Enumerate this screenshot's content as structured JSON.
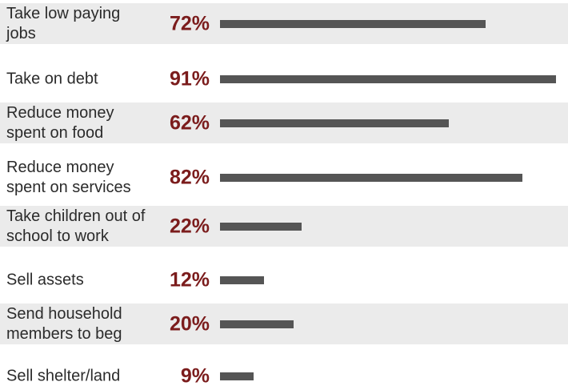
{
  "colors": {
    "bar": "#555555",
    "percent_text": "#7b1c1c",
    "band": "#ebebeb",
    "label_text": "#2b2b2b"
  },
  "chart_data": {
    "type": "bar",
    "orientation": "horizontal",
    "title": "",
    "xlabel": "",
    "ylabel": "",
    "xlim": [
      0,
      91
    ],
    "grid": false,
    "categories": [
      "Take low paying jobs",
      "Take on debt",
      "Reduce money spent on food",
      "Reduce money spent on services",
      "Take children out of school to work",
      "Sell assets",
      "Send household members to beg",
      "Sell shelter/land"
    ],
    "values": [
      72,
      91,
      62,
      82,
      22,
      12,
      20,
      9
    ],
    "value_labels": [
      "72%",
      "91%",
      "62%",
      "82%",
      "22%",
      "12%",
      "20%",
      "9%"
    ]
  }
}
